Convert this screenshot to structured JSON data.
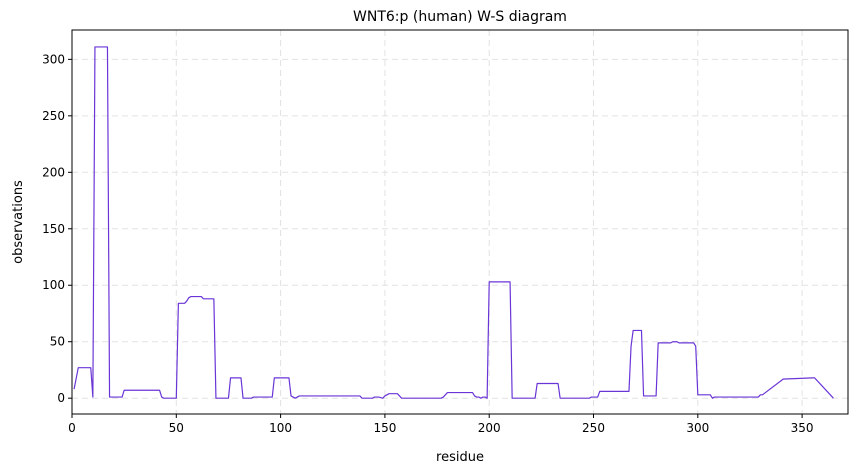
{
  "chart_data": {
    "type": "line",
    "title": "WNT6:p (human) W-S diagram",
    "xlabel": "residue",
    "ylabel": "observations",
    "xlim": [
      0,
      372
    ],
    "ylim": [
      -14,
      326
    ],
    "xticks": [
      0,
      50,
      100,
      150,
      200,
      250,
      300,
      350
    ],
    "yticks": [
      0,
      50,
      100,
      150,
      200,
      250,
      300
    ],
    "grid": true,
    "legend": "none",
    "line_color": "#6a35d6",
    "series": [
      {
        "x": [
          1,
          3,
          9,
          10,
          11,
          17,
          18,
          24,
          25,
          42,
          43,
          44,
          50,
          51,
          54,
          55,
          56,
          57,
          62,
          63,
          64,
          68,
          69,
          75,
          76,
          81,
          82,
          86,
          87,
          96,
          97,
          104,
          105,
          106,
          107,
          108,
          109,
          110,
          138,
          139,
          144,
          145,
          147,
          149,
          150,
          151,
          152,
          153,
          156,
          157,
          158,
          177,
          178,
          180,
          187,
          188,
          192,
          193,
          194,
          195,
          196,
          197,
          198,
          199,
          200,
          201,
          210,
          211,
          222,
          223,
          233,
          234,
          248,
          249,
          252,
          253,
          265,
          266,
          267,
          268,
          269,
          273,
          274,
          278,
          279,
          280,
          281,
          287,
          288,
          290,
          291,
          296,
          297,
          298,
          299,
          300,
          306,
          307,
          308,
          326,
          327,
          329,
          330,
          331,
          341,
          342,
          355,
          356,
          365
        ],
        "y": [
          8,
          27,
          27,
          1,
          311,
          311,
          1,
          1,
          7,
          7,
          1,
          0,
          0,
          84,
          84,
          86,
          89,
          90,
          90,
          88,
          88,
          88,
          0,
          0,
          18,
          18,
          0,
          0,
          1,
          1,
          18,
          18,
          2,
          1,
          0,
          1,
          2,
          2,
          2,
          0,
          0,
          1,
          1,
          0,
          2,
          3,
          4,
          4,
          4,
          2,
          0,
          0,
          1,
          5,
          5,
          5,
          5,
          2,
          1,
          1,
          0,
          1,
          1,
          0,
          103,
          103,
          103,
          0,
          0,
          13,
          13,
          0,
          0,
          1,
          1,
          6,
          6,
          6,
          6,
          46,
          60,
          60,
          2,
          2,
          2,
          2,
          49,
          49,
          50,
          50,
          49,
          49,
          49,
          49,
          46,
          3,
          3,
          0,
          1,
          1,
          1,
          1,
          3,
          3,
          17,
          17,
          18,
          18,
          0
        ]
      }
    ]
  }
}
